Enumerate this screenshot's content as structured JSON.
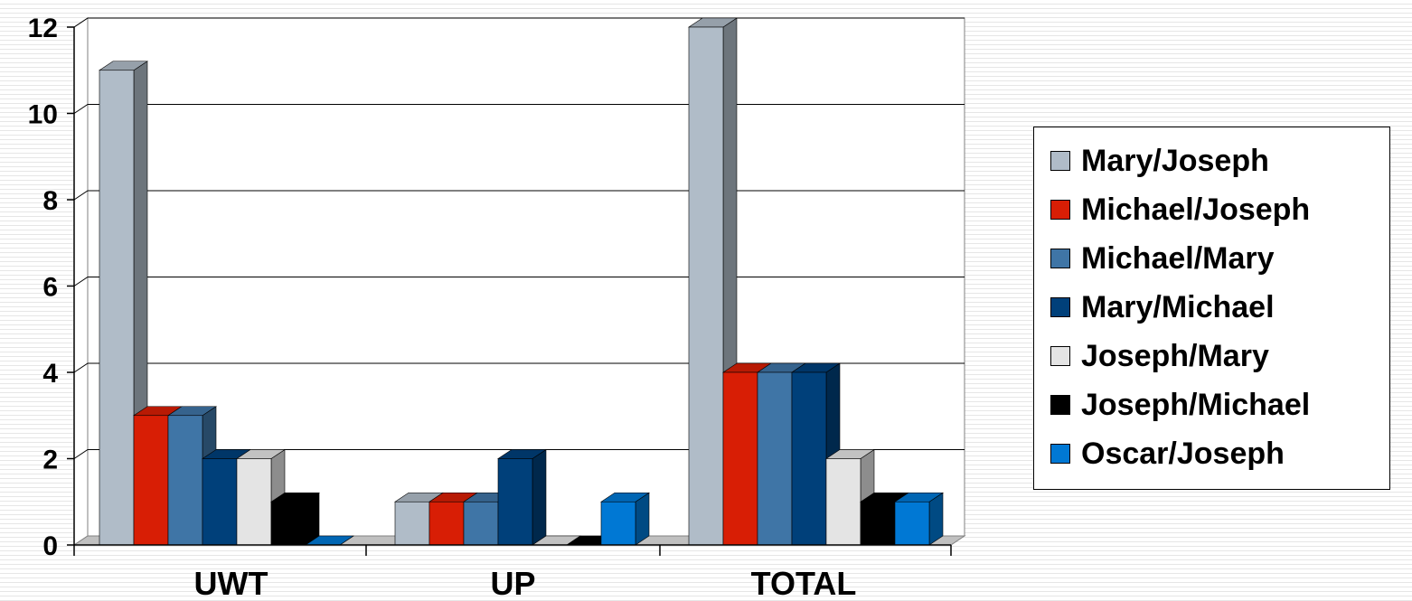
{
  "chart_data": {
    "type": "bar",
    "title": "",
    "xlabel": "",
    "ylabel": "",
    "categories": [
      "UWT",
      "UP",
      "TOTAL"
    ],
    "ylim": [
      0,
      12
    ],
    "yticks": [
      0,
      2,
      4,
      6,
      8,
      10,
      12
    ],
    "grid": true,
    "legend_position": "right",
    "series": [
      {
        "name": "Mary/Joseph",
        "values": [
          11,
          1,
          12
        ],
        "color": "#b0bcc8"
      },
      {
        "name": "Michael/Joseph",
        "values": [
          3,
          1,
          4
        ],
        "color": "#d81e05"
      },
      {
        "name": "Michael/Mary",
        "values": [
          3,
          1,
          4
        ],
        "color": "#3f75a6"
      },
      {
        "name": "Mary/Michael",
        "values": [
          2,
          2,
          4
        ],
        "color": "#00407a"
      },
      {
        "name": "Joseph/Mary",
        "values": [
          2,
          0,
          2
        ],
        "color": "#e4e4e4"
      },
      {
        "name": "Joseph/Michael",
        "values": [
          1,
          0,
          1
        ],
        "color": "#000000"
      },
      {
        "name": "Oscar/Joseph",
        "values": [
          0,
          1,
          1
        ],
        "color": "#0078d4"
      }
    ]
  }
}
